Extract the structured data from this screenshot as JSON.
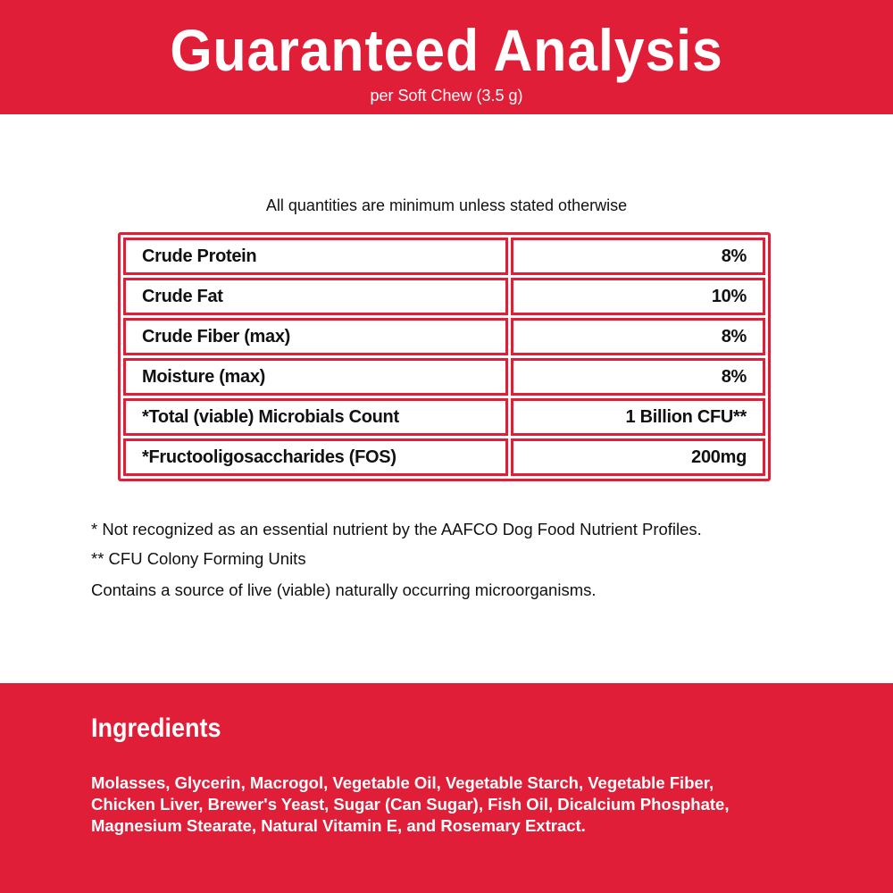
{
  "header": {
    "title": "Guaranteed Analysis",
    "subtitle": "per Soft Chew (3.5 g)"
  },
  "note": "All quantities are minimum unless stated otherwise",
  "analysis": [
    {
      "label": "Crude Protein",
      "value": "8%"
    },
    {
      "label": "Crude Fat",
      "value": "10%"
    },
    {
      "label": "Crude Fiber (max)",
      "value": "8%"
    },
    {
      "label": "Moisture (max)",
      "value": "8%"
    },
    {
      "label": "*Total (viable) Microbials Count",
      "value": "1 Billion CFU**"
    },
    {
      "label": "*Fructooligosaccharides (FOS)",
      "value": "200mg"
    }
  ],
  "footnotes": [
    "* Not recognized as an essential nutrient by the AAFCO Dog Food Nutrient Profiles.",
    "** CFU Colony Forming Units",
    "Contains a source of live (viable) naturally occurring microorganisms."
  ],
  "ingredients": {
    "heading": "Ingredients",
    "lines": [
      "Molasses, Glycerin, Macrogol, Vegetable Oil, Vegetable Starch, Vegetable Fiber,",
      "Chicken Liver, Brewer's Yeast, Sugar (Can Sugar), Fish Oil, Dicalcium Phosphate,",
      "Magnesium Stearate, Natural Vitamin E, and Rosemary Extract."
    ]
  },
  "colors": {
    "brand_red": "#e01e38"
  }
}
